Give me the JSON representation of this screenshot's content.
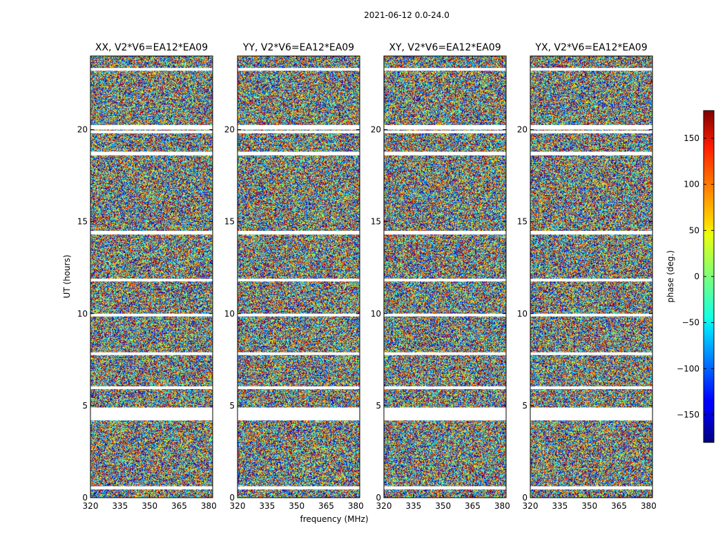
{
  "figure": {
    "suptitle": "2021-06-12 0.0-24.0"
  },
  "chart_data": {
    "type": "heatmap",
    "xlabel": "frequency (MHz)",
    "ylabel": "UT (hours)",
    "xlim": [
      320,
      382
    ],
    "ylim": [
      0,
      24
    ],
    "xticks": [
      320,
      335,
      350,
      365,
      380
    ],
    "yticks": [
      0,
      5,
      10,
      15,
      20
    ],
    "grid": false,
    "colormap": "jet",
    "colorbar": {
      "label": "phase (deg.)",
      "range": [
        -180,
        180
      ],
      "ticks": [
        150,
        100,
        50,
        0,
        -50,
        -100,
        -150
      ],
      "tick_labels": [
        "150",
        "100",
        "50",
        "0",
        "−50",
        "−100",
        "−150"
      ]
    },
    "panels": [
      {
        "title": "XX, V2*V6=EA12*EA09"
      },
      {
        "title": "YY, V2*V6=EA12*EA09"
      },
      {
        "title": "XY, V2*V6=EA12*EA09"
      },
      {
        "title": "YX, V2*V6=EA12*EA09"
      }
    ],
    "flagged_ut_gaps": [
      [
        0.45,
        0.62
      ],
      [
        4.2,
        4.9
      ],
      [
        5.9,
        6.05
      ],
      [
        7.75,
        7.9
      ],
      [
        9.85,
        10.0
      ],
      [
        11.75,
        11.9
      ],
      [
        14.3,
        14.5
      ],
      [
        18.6,
        18.8
      ],
      [
        19.8,
        19.95
      ],
      [
        20.0,
        20.25
      ],
      [
        23.2,
        23.35
      ]
    ]
  }
}
